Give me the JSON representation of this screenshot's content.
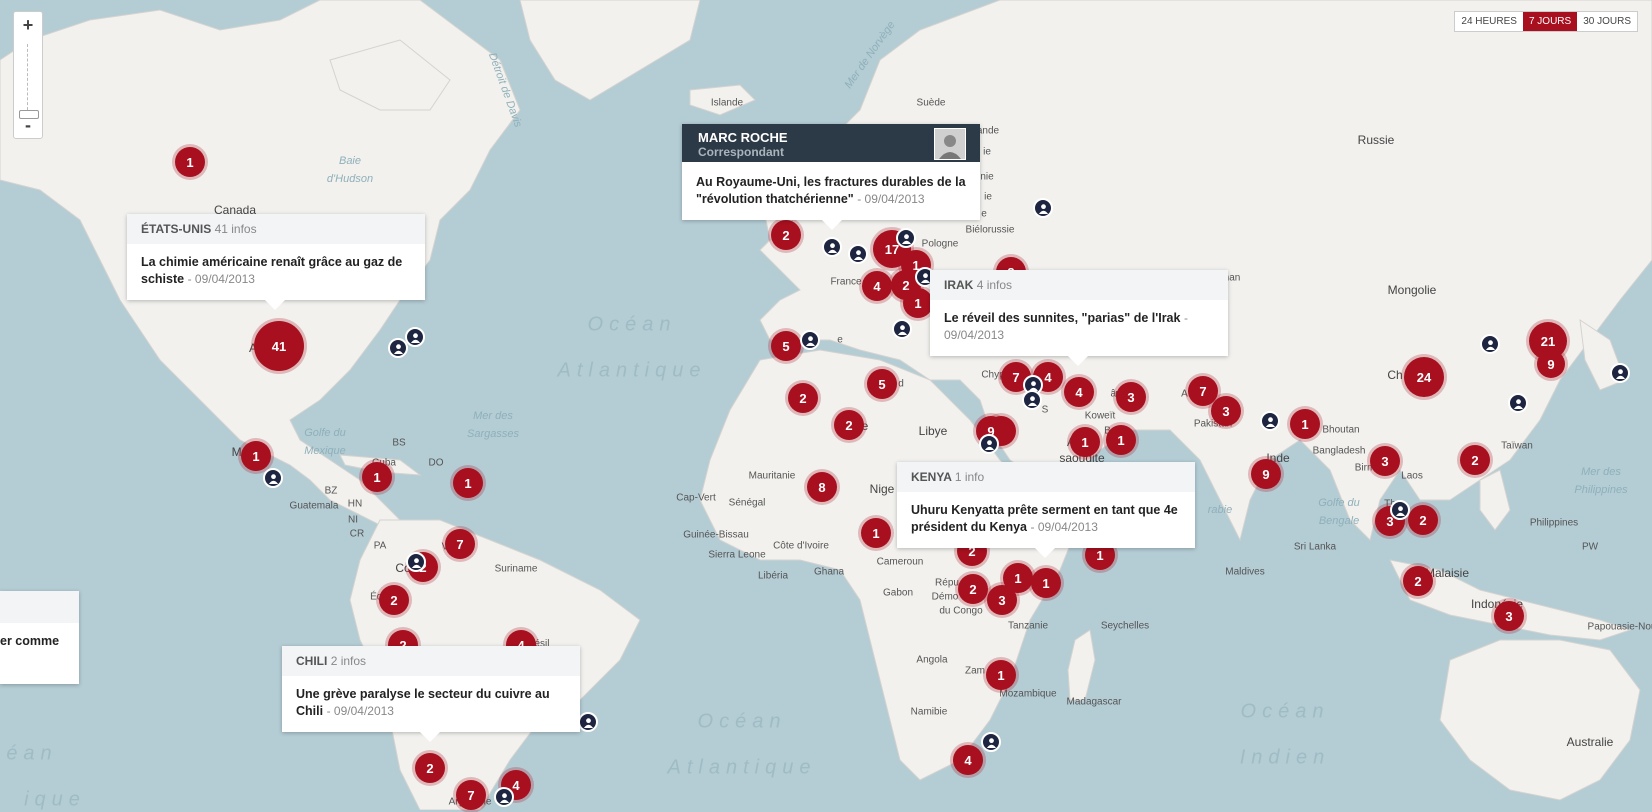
{
  "controls": {
    "zoom_in": "+",
    "zoom_out": "-",
    "time_filters": [
      {
        "label": "24 HEURES",
        "active": false
      },
      {
        "label": "7 JOURS",
        "active": true
      },
      {
        "label": "30 JOURS",
        "active": false
      }
    ]
  },
  "colors": {
    "marker": "#a8101f",
    "pin": "#1d2540",
    "water": "#b4ccd4",
    "land": "#f2f1ee"
  },
  "popups": {
    "usa": {
      "country": "ÉTATS-UNIS",
      "count": "41 infos",
      "headline": "La chimie américaine renaît grâce au gaz de schiste",
      "date": "- 09/04/2013"
    },
    "correspondent": {
      "name": "MARC ROCHE",
      "role": "Correspondant",
      "headline": "Au Royaume-Uni, les fractures durables de la \"révolution thatchérienne\"",
      "date": "- 09/04/2013"
    },
    "irak": {
      "country": "IRAK",
      "count": "4 infos",
      "headline": "Le réveil des sunnites, \"parias\" de l'Irak",
      "date": "- 09/04/2013"
    },
    "kenya": {
      "country": "KENYA",
      "count": "1 info",
      "headline": "Uhuru Kenyatta prête serment en tant que 4e président du Kenya",
      "date": "- 09/04/2013"
    },
    "chili": {
      "country": "CHILI",
      "count": "2 infos",
      "headline": "Une grève paralyse le secteur du cuivre au Chili",
      "date": "- 09/04/2013"
    },
    "partial": {
      "text": "er comme"
    }
  },
  "labels": {
    "islande": "Islande",
    "suede": "Suède",
    "russie": "Russie",
    "canada": "Canada",
    "bielorussie": "Biélorussie",
    "pologne": "Pologne",
    "france": "France",
    "mongolie": "Mongolie",
    "chine": "Ch",
    "libye": "Libye",
    "mauritanie": "Mauritanie",
    "capvert": "Cap-Vert",
    "senegal": "Sénégal",
    "guineebissau": "Guinée-Bissau",
    "sierraleone": "Sierra Leone",
    "liberia": "Libéria",
    "cotedivoire": "Côte d'Ivoire",
    "ghana": "Ghana",
    "niger": "Nige",
    "cameroun": "Cameroun",
    "gabon": "Gabon",
    "rdc1": "Répu",
    "rdc2": "Démo",
    "rdc3": "du Congo",
    "tanzanie": "Tanzanie",
    "angola": "Angola",
    "zambie": "Zam",
    "mozambique": "Mozambique",
    "madagascar": "Madagascar",
    "namibie": "Namibie",
    "seychelles": "Seychelles",
    "maldives": "Maldives",
    "srilanka": "Sri Lanka",
    "inde": "Inde",
    "pakistan": "Pakistan",
    "afgha": "Afghan",
    "koweit": "Koweït",
    "bahrein": "Bah",
    "arabie": "saoudite",
    "bhoutan": "Bhoutan",
    "bangladesh": "Bangladesh",
    "birmanie": "Birm",
    "laos": "Laos",
    "thailande": "Th",
    "taiwan": "Taïwan",
    "philippines": "Philippines",
    "malaisie": "Malaisie",
    "indonesie": "Indonésie",
    "papouasie": "Papouasie-Nou",
    "palau": "PW",
    "australie": "Australie",
    "mexique": "Me",
    "bs": "BS",
    "cuba": "Cuba",
    "do": "DO",
    "bz": "BZ",
    "guatemala": "Guatemala",
    "hn": "HN",
    "ni": "NI",
    "cr": "CR",
    "pa": "PA",
    "venezuela": "V    ela",
    "colombie": "Co",
    "equateur": "Équ",
    "suriname": "Suriname",
    "argentine": "Argentine",
    "chypre": "Chyp",
    "ie": "ie",
    "nie": "nie",
    "ande": "ande",
    "nan": "nan",
    "ie2": "ie",
    "ie3": "e",
    "e4": "e",
    "n5": "n",
    "a6": "A",
    "lgerie": "e",
    "ksud": "S",
    "d": "d",
    "rn": "ân",
    "ai": "A",
    "bresil": "ésil"
  },
  "seas": {
    "baie": "Baie\nd'Hudson",
    "detroit": "Détroit de Davis",
    "norvege": "Mer de Norvège",
    "golfe_mexique": "Golfe du\nMexique",
    "sargasses": "Mer des\nSargasses",
    "golfe_bengale": "Golfe du\nBengale",
    "arabie_sea": "rabie",
    "philippines_sea": "Mer des\nPhilippines"
  },
  "oceans": {
    "atl_n1": "Océan",
    "atl_n2": "Atlantique",
    "atl_s1": "Océan",
    "atl_s2": "Atlantique",
    "ind1": "Océan",
    "ind2": "Indien",
    "pac1": "éan",
    "pac2": "ique"
  },
  "markers": [
    {
      "v": "1",
      "size": 30
    },
    {
      "v": "41",
      "size": 50
    },
    {
      "v": "1",
      "size": 30
    },
    {
      "v": "1",
      "size": 30
    },
    {
      "v": "1",
      "size": 30
    },
    {
      "v": "7",
      "size": 30
    },
    {
      "v": "2",
      "size": 30
    },
    {
      "v": "2",
      "size": 30
    },
    {
      "v": "2",
      "size": 30
    },
    {
      "v": "4",
      "size": 30
    },
    {
      "v": "2",
      "size": 30
    },
    {
      "v": "7",
      "size": 30
    },
    {
      "v": "4",
      "size": 30
    },
    {
      "v": "2",
      "size": 30
    },
    {
      "v": "17",
      "size": 38
    },
    {
      "v": "1",
      "size": 30
    },
    {
      "v": "4",
      "size": 30
    },
    {
      "v": "2",
      "size": 30
    },
    {
      "v": "1",
      "size": 30
    },
    {
      "v": "5",
      "size": 30
    },
    {
      "v": "5",
      "size": 30
    },
    {
      "v": "2",
      "size": 30
    },
    {
      "v": "2",
      "size": 30
    },
    {
      "v": "8",
      "size": 30
    },
    {
      "v": "1",
      "size": 30
    },
    {
      "v": "7",
      "size": 30
    },
    {
      "v": "4",
      "size": 30
    },
    {
      "v": "4",
      "size": 30
    },
    {
      "v": "3",
      "size": 30
    },
    {
      "v": "9",
      "size": 30
    },
    {
      "v": "1",
      "size": 30
    },
    {
      "v": "1",
      "size": 30
    },
    {
      "v": "7",
      "size": 30
    },
    {
      "v": "3",
      "size": 30
    },
    {
      "v": "1",
      "size": 30
    },
    {
      "v": "9",
      "size": 30
    },
    {
      "v": "3",
      "size": 30
    },
    {
      "v": "2",
      "size": 30
    },
    {
      "v": "24",
      "size": 40
    },
    {
      "v": "21",
      "size": 38
    },
    {
      "v": "9",
      "size": 28
    },
    {
      "v": "2",
      "size": 30
    },
    {
      "v": "2",
      "size": 30
    },
    {
      "v": "3",
      "size": 30
    },
    {
      "v": "9",
      "size": 30
    },
    {
      "v": "2",
      "size": 30
    },
    {
      "v": "3",
      "size": 30
    },
    {
      "v": "1",
      "size": 30
    },
    {
      "v": "1",
      "size": 30
    },
    {
      "v": "1",
      "size": 30
    },
    {
      "v": "1",
      "size": 30
    },
    {
      "v": "4",
      "size": 30
    },
    {
      "v": "2",
      "size": 30
    },
    {
      "v": "3",
      "size": 30
    },
    {
      "v": "2",
      "size": 30
    }
  ]
}
